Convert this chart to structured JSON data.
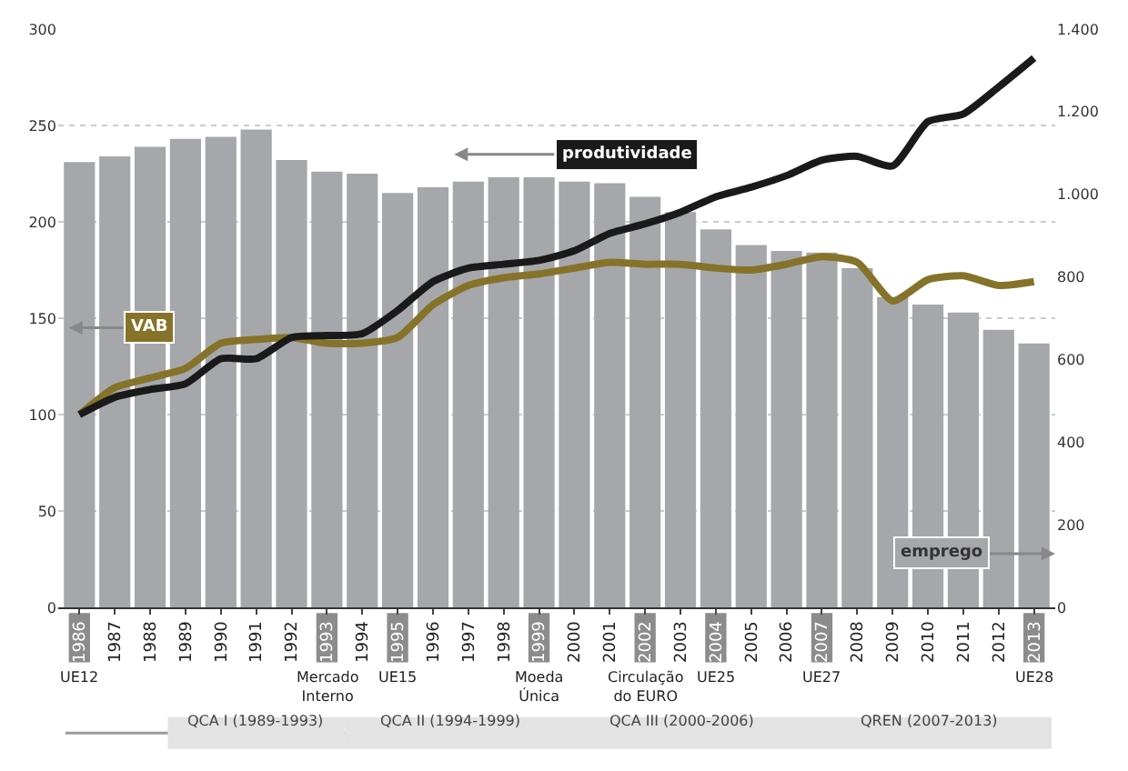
{
  "chart_data": {
    "type": "bar",
    "categories": [
      "1986",
      "1987",
      "1988",
      "1989",
      "1990",
      "1991",
      "1992",
      "1993",
      "1994",
      "1995",
      "1996",
      "1997",
      "1998",
      "1999",
      "2000",
      "2001",
      "2002",
      "2003",
      "2004",
      "2005",
      "2006",
      "2007",
      "2008",
      "2009",
      "2010",
      "2011",
      "2012",
      "2013"
    ],
    "series": [
      {
        "name": "emprego",
        "axis": "y2",
        "color": "#a6a7ab",
        "values": [
          1078,
          1092,
          1115,
          1134,
          1139,
          1157,
          1083,
          1055,
          1050,
          1003,
          1017,
          1031,
          1041,
          1041,
          1031,
          1027,
          994,
          957,
          915,
          877,
          863,
          859,
          821,
          751,
          733,
          714,
          672,
          639
        ]
      },
      {
        "name": "VAB",
        "type": "line",
        "color": "#86732a",
        "values": [
          100,
          114,
          119,
          124,
          137,
          139,
          140,
          137,
          137,
          140,
          157,
          167,
          171,
          173,
          176,
          179,
          178,
          178,
          176,
          175,
          178,
          182,
          179,
          159,
          170,
          172,
          167,
          169
        ]
      },
      {
        "name": "produtividade",
        "type": "line",
        "color": "#1a1a1a",
        "values": [
          100,
          109,
          113,
          116,
          129,
          129,
          140,
          141,
          142,
          154,
          169,
          176,
          178,
          180,
          185,
          194,
          199,
          205,
          213,
          218,
          224,
          232,
          234,
          229,
          252,
          256,
          270,
          285
        ]
      }
    ],
    "ylim": [
      0,
      300
    ],
    "yticks": [
      0,
      50,
      100,
      150,
      200,
      250,
      300
    ],
    "y2lim": [
      0,
      1400
    ],
    "y2ticks": [
      0,
      200,
      400,
      600,
      800,
      {
        "value": 1000,
        "label": "1.000"
      },
      {
        "value": 1200,
        "label": "1.200"
      },
      {
        "value": 1400,
        "label": "1.400"
      }
    ],
    "grid": "y",
    "legend": "left",
    "marker": "none",
    "line_style": "solid",
    "annotations": [
      "UE12",
      "Mercado\nInterno",
      "UE15",
      "Moeda\nÚnica",
      "Circulação\ndo EURO",
      "UE25",
      "UE27",
      "UE28",
      "QCA I (1989-1993)",
      "QCA II (1994-1999)",
      "QCA III (2000-2006)",
      "QREN (2007-2013)"
    ]
  }
}
